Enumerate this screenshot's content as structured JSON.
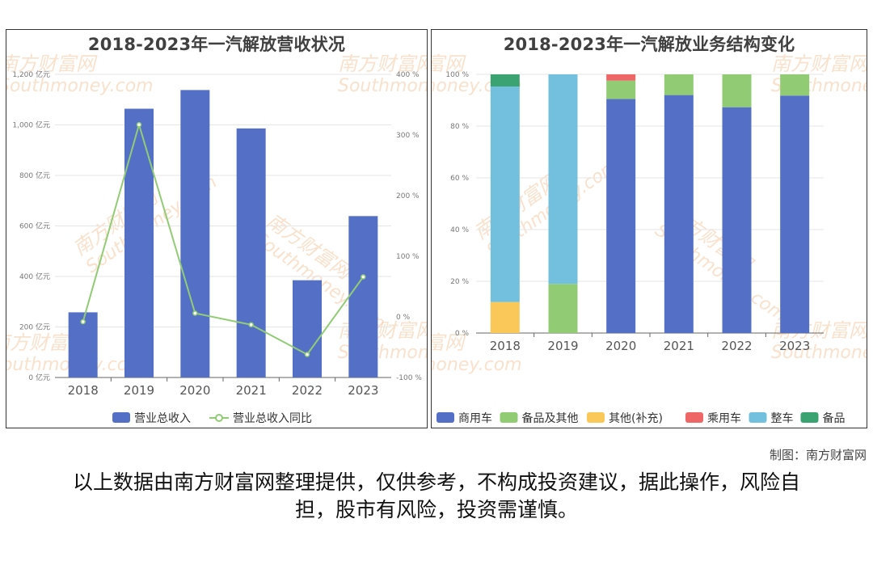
{
  "page": {
    "credit": "制图：南方财富网",
    "disclaimer": "以上数据由南方财富网整理提供，仅供参考，不构成投资建议，据此操作，风险自担，股市有风险，投资需谨慎。",
    "watermark_cn": "南方财富网",
    "watermark_en": "Southmoney.com"
  },
  "colors": {
    "bar_blue": "#5470c6",
    "line_green": "#91cc75",
    "yellow": "#fac858",
    "red": "#ee6666",
    "light_blue": "#73c0de",
    "dark_green": "#3ba272",
    "watermark": "#f5c9a3"
  },
  "chart_data": [
    {
      "type": "bar",
      "title": "2018-2023年一汽解放营收状况",
      "categories": [
        "2018",
        "2019",
        "2020",
        "2021",
        "2022",
        "2023"
      ],
      "y_axis_left": {
        "ticks": [
          "0 亿元",
          "200 亿元",
          "400 亿元",
          "600 亿元",
          "800 亿元",
          "1,000 亿元",
          "1,200 亿元"
        ],
        "range": [
          0,
          1200
        ],
        "unit": "亿元"
      },
      "y_axis_right": {
        "ticks": [
          "-100 %",
          "0 %",
          "100 %",
          "200 %",
          "300 %",
          "400 %"
        ],
        "range": [
          -100,
          400
        ],
        "unit": "%"
      },
      "series": [
        {
          "name": "营业总收入",
          "type": "bar",
          "axis": "left",
          "color": "#5470c6",
          "values": [
            258,
            1064,
            1138,
            986,
            385,
            639
          ]
        },
        {
          "name": "营业总收入同比",
          "type": "line",
          "axis": "right",
          "color": "#91cc75",
          "values": [
            -8,
            317,
            6,
            -13,
            -62,
            66
          ]
        }
      ],
      "legend": "bottom-center",
      "grid": true
    },
    {
      "type": "bar",
      "stacked": true,
      "title": "2018-2023年一汽解放业务结构变化",
      "categories": [
        "2018",
        "2019",
        "2020",
        "2021",
        "2022",
        "2023"
      ],
      "y_axis": {
        "ticks": [
          "0 %",
          "20 %",
          "40 %",
          "60 %",
          "80 %",
          "100 %"
        ],
        "range": [
          0,
          100
        ],
        "unit": "%"
      },
      "series": [
        {
          "name": "商用车",
          "color": "#5470c6",
          "values": [
            0,
            0,
            90.5,
            92,
            87.3,
            91.8
          ]
        },
        {
          "name": "备品及其他",
          "color": "#91cc75",
          "values": [
            0,
            19,
            7.1,
            8,
            12.7,
            8.2
          ]
        },
        {
          "name": "其他(补充)",
          "color": "#fac858",
          "values": [
            12,
            0,
            0,
            0,
            0,
            0
          ]
        },
        {
          "name": "乘用车",
          "color": "#ee6666",
          "values": [
            0,
            0,
            2.4,
            0,
            0,
            0
          ]
        },
        {
          "name": "整车",
          "color": "#73c0de",
          "values": [
            83.3,
            81,
            0,
            0,
            0,
            0
          ]
        },
        {
          "name": "备品",
          "color": "#3ba272",
          "values": [
            4.7,
            0,
            0,
            0,
            0,
            0
          ]
        }
      ],
      "legend": "bottom-center",
      "grid": true
    }
  ]
}
